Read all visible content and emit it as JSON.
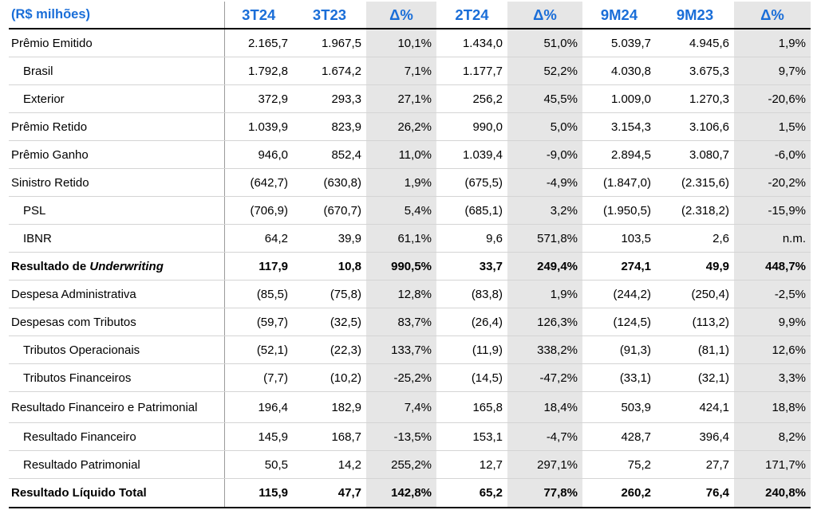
{
  "table": {
    "header": {
      "label": "(R$ milhões)",
      "columns": [
        "3T24",
        "3T23",
        "Δ%",
        "2T24",
        "Δ%",
        "9M24",
        "9M23",
        "Δ%"
      ]
    },
    "rows": [
      {
        "label": "Prêmio Emitido",
        "label_em": "",
        "values": [
          "2.165,7",
          "1.967,5",
          "10,1%",
          "1.434,0",
          "51,0%",
          "5.039,7",
          "4.945,6",
          "1,9%"
        ]
      },
      {
        "label": "Brasil",
        "label_em": "",
        "values": [
          "1.792,8",
          "1.674,2",
          "7,1%",
          "1.177,7",
          "52,2%",
          "4.030,8",
          "3.675,3",
          "9,7%"
        ]
      },
      {
        "label": "Exterior",
        "label_em": "",
        "values": [
          "372,9",
          "293,3",
          "27,1%",
          "256,2",
          "45,5%",
          "1.009,0",
          "1.270,3",
          "-20,6%"
        ]
      },
      {
        "label": "Prêmio Retido",
        "label_em": "",
        "values": [
          "1.039,9",
          "823,9",
          "26,2%",
          "990,0",
          "5,0%",
          "3.154,3",
          "3.106,6",
          "1,5%"
        ]
      },
      {
        "label": "Prêmio Ganho",
        "label_em": "",
        "values": [
          "946,0",
          "852,4",
          "11,0%",
          "1.039,4",
          "-9,0%",
          "2.894,5",
          "3.080,7",
          "-6,0%"
        ]
      },
      {
        "label": "Sinistro Retido",
        "label_em": "",
        "values": [
          "(642,7)",
          "(630,8)",
          "1,9%",
          "(675,5)",
          "-4,9%",
          "(1.847,0)",
          "(2.315,6)",
          "-20,2%"
        ]
      },
      {
        "label": "PSL",
        "label_em": "",
        "values": [
          "(706,9)",
          "(670,7)",
          "5,4%",
          "(685,1)",
          "3,2%",
          "(1.950,5)",
          "(2.318,2)",
          "-15,9%"
        ]
      },
      {
        "label": "IBNR",
        "label_em": "",
        "values": [
          "64,2",
          "39,9",
          "61,1%",
          "9,6",
          "571,8%",
          "103,5",
          "2,6",
          "n.m."
        ]
      },
      {
        "label": "Resultado de ",
        "label_em": "Underwriting",
        "values": [
          "117,9",
          "10,8",
          "990,5%",
          "33,7",
          "249,4%",
          "274,1",
          "49,9",
          "448,7%"
        ]
      },
      {
        "label": "Despesa Administrativa",
        "label_em": "",
        "values": [
          "(85,5)",
          "(75,8)",
          "12,8%",
          "(83,8)",
          "1,9%",
          "(244,2)",
          "(250,4)",
          "-2,5%"
        ]
      },
      {
        "label": "Despesas com Tributos",
        "label_em": "",
        "values": [
          "(59,7)",
          "(32,5)",
          "83,7%",
          "(26,4)",
          "126,3%",
          "(124,5)",
          "(113,2)",
          "9,9%"
        ]
      },
      {
        "label": "Tributos Operacionais",
        "label_em": "",
        "values": [
          "(52,1)",
          "(22,3)",
          "133,7%",
          "(11,9)",
          "338,2%",
          "(91,3)",
          "(81,1)",
          "12,6%"
        ]
      },
      {
        "label": "Tributos Financeiros",
        "label_em": "",
        "values": [
          "(7,7)",
          "(10,2)",
          "-25,2%",
          "(14,5)",
          "-47,2%",
          "(33,1)",
          "(32,1)",
          "3,3%"
        ]
      },
      {
        "label": "Resultado Financeiro e Patrimonial",
        "label_em": "",
        "values": [
          "196,4",
          "182,9",
          "7,4%",
          "165,8",
          "18,4%",
          "503,9",
          "424,1",
          "18,8%"
        ]
      },
      {
        "label": "Resultado Financeiro",
        "label_em": "",
        "values": [
          "145,9",
          "168,7",
          "-13,5%",
          "153,1",
          "-4,7%",
          "428,7",
          "396,4",
          "8,2%"
        ]
      },
      {
        "label": "Resultado Patrimonial",
        "label_em": "",
        "values": [
          "50,5",
          "14,2",
          "255,2%",
          "12,7",
          "297,1%",
          "75,2",
          "27,7",
          "171,7%"
        ]
      },
      {
        "label": "Resultado Líquido Total",
        "label_em": "",
        "values": [
          "115,9",
          "47,7",
          "142,8%",
          "65,2",
          "77,8%",
          "260,2",
          "76,4",
          "240,8%"
        ]
      }
    ]
  }
}
